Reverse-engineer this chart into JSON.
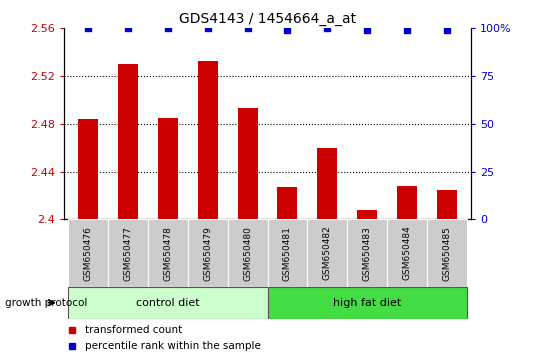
{
  "title": "GDS4143 / 1454664_a_at",
  "samples": [
    "GSM650476",
    "GSM650477",
    "GSM650478",
    "GSM650479",
    "GSM650480",
    "GSM650481",
    "GSM650482",
    "GSM650483",
    "GSM650484",
    "GSM650485"
  ],
  "bar_values": [
    2.484,
    2.53,
    2.485,
    2.533,
    2.493,
    2.427,
    2.46,
    2.408,
    2.428,
    2.425
  ],
  "percentile_values": [
    100,
    100,
    100,
    100,
    100,
    99,
    100,
    99,
    99,
    99
  ],
  "bar_color": "#cc0000",
  "dot_color": "#0000cc",
  "ylim_left": [
    2.4,
    2.56
  ],
  "ylim_right": [
    0,
    100
  ],
  "yticks_left": [
    2.4,
    2.44,
    2.48,
    2.52,
    2.56
  ],
  "ytick_labels_left": [
    "2.4",
    "2.44",
    "2.48",
    "2.52",
    "2.56"
  ],
  "yticks_right": [
    0,
    25,
    50,
    75,
    100
  ],
  "ytick_labels_right": [
    "0",
    "25",
    "50",
    "75",
    "100%"
  ],
  "groups": [
    {
      "label": "control diet",
      "indices": [
        0,
        1,
        2,
        3,
        4
      ],
      "color": "#ccffcc"
    },
    {
      "label": "high fat diet",
      "indices": [
        5,
        6,
        7,
        8,
        9
      ],
      "color": "#44dd44"
    }
  ],
  "group_label": "growth protocol",
  "legend_items": [
    {
      "color": "#cc0000",
      "label": "transformed count"
    },
    {
      "color": "#0000cc",
      "label": "percentile rank within the sample"
    }
  ],
  "bar_width": 0.5,
  "background_color": "#ffffff",
  "plot_bg_color": "#ffffff",
  "sample_bg_color": "#cccccc",
  "dotted_line_color": "#000000",
  "grid_lines": [
    2.44,
    2.48,
    2.52
  ]
}
